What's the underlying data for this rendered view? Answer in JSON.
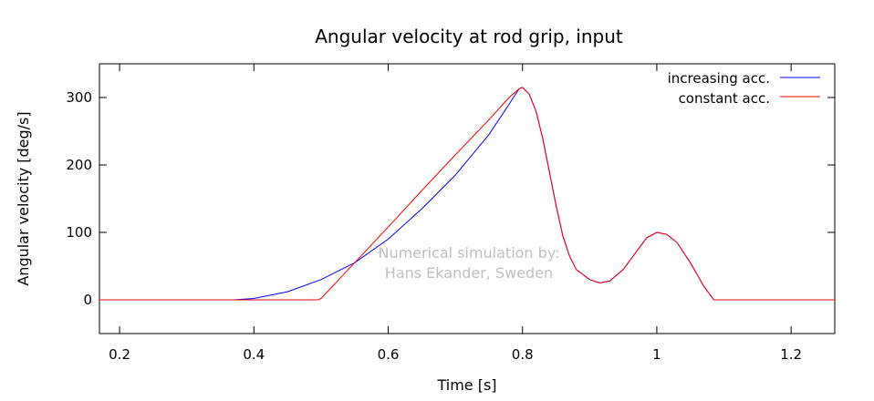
{
  "chart_data": {
    "type": "line",
    "title": "Angular velocity at rod grip, input",
    "xlabel": "Time [s]",
    "ylabel": "Angular velocity [deg/s]",
    "xlim": [
      0.17,
      1.265
    ],
    "ylim": [
      -50,
      350
    ],
    "x_ticks": [
      0.2,
      0.4,
      0.6,
      0.8,
      1.0,
      1.2
    ],
    "x_tick_labels": [
      "0.2",
      "0.4",
      "0.6",
      "0.8",
      "1",
      "1.2"
    ],
    "y_ticks": [
      0,
      100,
      200,
      300
    ],
    "y_tick_labels": [
      "0",
      "100",
      "200",
      "300"
    ],
    "grid": false,
    "legend_position": "top-right",
    "annotation": [
      "Numerical simulation by:",
      "Hans Ekander, Sweden"
    ],
    "series": [
      {
        "name": "increasing acc.",
        "color": "#0000ff",
        "points": [
          [
            0.17,
            0
          ],
          [
            0.37,
            0
          ],
          [
            0.4,
            2
          ],
          [
            0.45,
            12
          ],
          [
            0.5,
            30
          ],
          [
            0.55,
            55
          ],
          [
            0.6,
            90
          ],
          [
            0.65,
            135
          ],
          [
            0.7,
            185
          ],
          [
            0.75,
            245
          ],
          [
            0.78,
            290
          ],
          [
            0.795,
            313
          ],
          [
            0.8,
            315
          ],
          [
            0.81,
            305
          ],
          [
            0.82,
            280
          ],
          [
            0.83,
            240
          ],
          [
            0.84,
            190
          ],
          [
            0.85,
            140
          ],
          [
            0.86,
            95
          ],
          [
            0.87,
            65
          ],
          [
            0.88,
            45
          ],
          [
            0.9,
            30
          ],
          [
            0.915,
            25
          ],
          [
            0.93,
            28
          ],
          [
            0.95,
            45
          ],
          [
            0.97,
            72
          ],
          [
            0.985,
            92
          ],
          [
            1.0,
            100
          ],
          [
            1.015,
            97
          ],
          [
            1.03,
            85
          ],
          [
            1.05,
            55
          ],
          [
            1.07,
            20
          ],
          [
            1.085,
            0
          ],
          [
            1.265,
            0
          ]
        ]
      },
      {
        "name": "constant acc.",
        "color": "#ff0000",
        "points": [
          [
            0.17,
            0
          ],
          [
            0.495,
            0
          ],
          [
            0.5,
            2
          ],
          [
            0.55,
            55
          ],
          [
            0.6,
            108
          ],
          [
            0.65,
            162
          ],
          [
            0.7,
            215
          ],
          [
            0.75,
            267
          ],
          [
            0.78,
            300
          ],
          [
            0.795,
            313
          ],
          [
            0.8,
            315
          ],
          [
            0.81,
            305
          ],
          [
            0.82,
            280
          ],
          [
            0.83,
            240
          ],
          [
            0.84,
            190
          ],
          [
            0.85,
            140
          ],
          [
            0.86,
            95
          ],
          [
            0.87,
            65
          ],
          [
            0.88,
            45
          ],
          [
            0.9,
            30
          ],
          [
            0.915,
            25
          ],
          [
            0.93,
            28
          ],
          [
            0.95,
            45
          ],
          [
            0.97,
            72
          ],
          [
            0.985,
            92
          ],
          [
            1.0,
            100
          ],
          [
            1.015,
            97
          ],
          [
            1.03,
            85
          ],
          [
            1.05,
            55
          ],
          [
            1.07,
            20
          ],
          [
            1.085,
            0
          ],
          [
            1.265,
            0
          ]
        ]
      }
    ]
  }
}
